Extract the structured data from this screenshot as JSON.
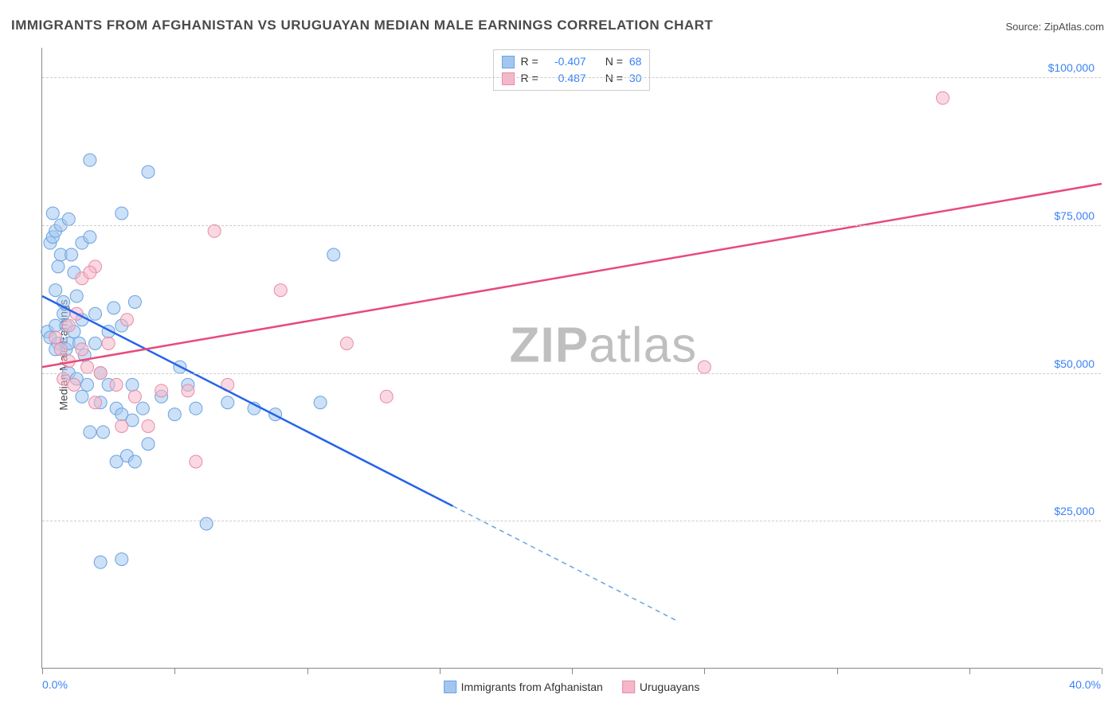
{
  "title": "IMMIGRANTS FROM AFGHANISTAN VS URUGUAYAN MEDIAN MALE EARNINGS CORRELATION CHART",
  "source_label": "Source: ",
  "source_name": "ZipAtlas.com",
  "watermark": {
    "bold": "ZIP",
    "light": "atlas"
  },
  "chart": {
    "type": "scatter",
    "background_color": "#ffffff",
    "grid_color": "#cccccc",
    "axis_color": "#888888",
    "axis_label_color": "#3b82f6",
    "y_title": "Median Male Earnings",
    "y_title_color": "#444444",
    "xlim": [
      0,
      40
    ],
    "ylim": [
      0,
      105000
    ],
    "x_ticks": [
      0,
      5,
      10,
      15,
      20,
      25,
      30,
      35,
      40
    ],
    "x_tick_labels": {
      "0": "0.0%",
      "40": "40.0%"
    },
    "y_gridlines": [
      25000,
      50000,
      75000,
      100000
    ],
    "y_tick_labels": {
      "25000": "$25,000",
      "50000": "$50,000",
      "75000": "$75,000",
      "100000": "$100,000"
    },
    "series": [
      {
        "id": "afghanistan",
        "label": "Immigrants from Afghanistan",
        "color_fill": "#a3c6f0",
        "color_stroke": "#6aa3e0",
        "line_color": "#2563eb",
        "line_color_dashed": "#6aa3e0",
        "marker_radius": 8,
        "fill_opacity": 0.55,
        "r_value": "-0.407",
        "n_value": "68",
        "trend": {
          "x1": 0,
          "y1": 63000,
          "x2_solid": 15.5,
          "y2_solid": 27500,
          "x2": 24,
          "y2": 8000
        },
        "points": [
          [
            0.2,
            57000
          ],
          [
            0.3,
            56000
          ],
          [
            0.3,
            72000
          ],
          [
            0.4,
            73000
          ],
          [
            0.4,
            77000
          ],
          [
            0.5,
            74000
          ],
          [
            0.5,
            64000
          ],
          [
            0.5,
            58000
          ],
          [
            0.6,
            55000
          ],
          [
            0.6,
            68000
          ],
          [
            0.7,
            70000
          ],
          [
            0.7,
            75000
          ],
          [
            0.8,
            60000
          ],
          [
            0.8,
            62000
          ],
          [
            0.9,
            54000
          ],
          [
            0.9,
            58000
          ],
          [
            1.0,
            55000
          ],
          [
            1.0,
            50000
          ],
          [
            1.0,
            76000
          ],
          [
            1.1,
            70000
          ],
          [
            1.2,
            67000
          ],
          [
            1.2,
            57000
          ],
          [
            1.3,
            63000
          ],
          [
            1.3,
            49000
          ],
          [
            1.4,
            55000
          ],
          [
            1.5,
            59000
          ],
          [
            1.5,
            46000
          ],
          [
            1.5,
            72000
          ],
          [
            1.6,
            53000
          ],
          [
            1.7,
            48000
          ],
          [
            1.8,
            73000
          ],
          [
            1.8,
            40000
          ],
          [
            1.8,
            86000
          ],
          [
            2.0,
            60000
          ],
          [
            2.0,
            55000
          ],
          [
            2.2,
            45000
          ],
          [
            2.2,
            50000
          ],
          [
            2.3,
            40000
          ],
          [
            2.5,
            57000
          ],
          [
            2.5,
            48000
          ],
          [
            2.7,
            61000
          ],
          [
            2.8,
            44000
          ],
          [
            3.0,
            58000
          ],
          [
            3.0,
            43000
          ],
          [
            3.0,
            77000
          ],
          [
            3.2,
            36000
          ],
          [
            3.4,
            48000
          ],
          [
            3.4,
            42000
          ],
          [
            3.5,
            62000
          ],
          [
            3.8,
            44000
          ],
          [
            4.0,
            38000
          ],
          [
            4.0,
            84000
          ],
          [
            4.5,
            46000
          ],
          [
            5.0,
            43000
          ],
          [
            5.2,
            51000
          ],
          [
            5.5,
            48000
          ],
          [
            5.8,
            44000
          ],
          [
            6.2,
            24500
          ],
          [
            7.0,
            45000
          ],
          [
            8.0,
            44000
          ],
          [
            8.8,
            43000
          ],
          [
            10.5,
            45000
          ],
          [
            11.0,
            70000
          ],
          [
            3.0,
            18500
          ],
          [
            2.2,
            18000
          ],
          [
            2.8,
            35000
          ],
          [
            3.5,
            35000
          ],
          [
            0.5,
            54000
          ]
        ]
      },
      {
        "id": "uruguayans",
        "label": "Uruguayans",
        "color_fill": "#f5b8c9",
        "color_stroke": "#e88aa8",
        "line_color": "#e84a7a",
        "marker_radius": 8,
        "fill_opacity": 0.55,
        "r_value": "0.487",
        "n_value": "30",
        "trend": {
          "x1": 0,
          "y1": 51000,
          "x2": 40,
          "y2": 82000
        },
        "points": [
          [
            0.5,
            56000
          ],
          [
            0.7,
            54000
          ],
          [
            0.8,
            49000
          ],
          [
            1.0,
            58000
          ],
          [
            1.0,
            52000
          ],
          [
            1.2,
            48000
          ],
          [
            1.3,
            60000
          ],
          [
            1.5,
            66000
          ],
          [
            1.5,
            54000
          ],
          [
            1.7,
            51000
          ],
          [
            2.0,
            68000
          ],
          [
            2.0,
            45000
          ],
          [
            2.2,
            50000
          ],
          [
            2.5,
            55000
          ],
          [
            2.8,
            48000
          ],
          [
            3.0,
            41000
          ],
          [
            3.2,
            59000
          ],
          [
            3.5,
            46000
          ],
          [
            4.0,
            41000
          ],
          [
            4.5,
            47000
          ],
          [
            5.5,
            47000
          ],
          [
            5.8,
            35000
          ],
          [
            6.5,
            74000
          ],
          [
            7.0,
            48000
          ],
          [
            9.0,
            64000
          ],
          [
            11.5,
            55000
          ],
          [
            13.0,
            46000
          ],
          [
            25.0,
            51000
          ],
          [
            34.0,
            96500
          ],
          [
            1.8,
            67000
          ]
        ]
      }
    ],
    "legend_top": {
      "r_label": "R =",
      "n_label": "N =",
      "value_color": "#3b82f6",
      "text_color": "#333333"
    }
  }
}
